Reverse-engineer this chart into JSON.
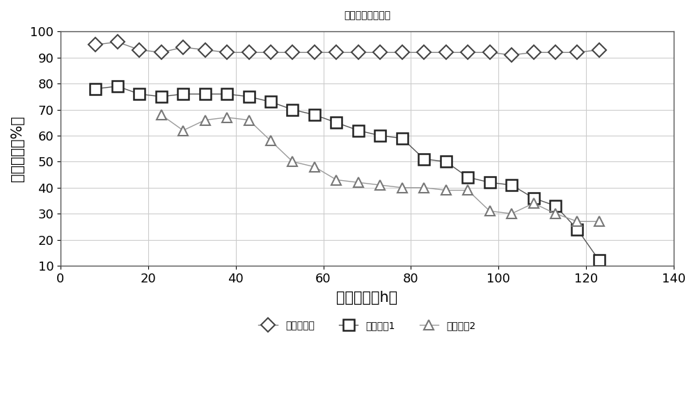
{
  "title": "乙酸丁酯处理效率",
  "xlabel": "运行时间（h）",
  "ylabel": "去除效率（%）",
  "xlim": [
    0,
    140
  ],
  "ylim": [
    10,
    100
  ],
  "xticks": [
    0,
    20,
    40,
    60,
    80,
    100,
    120,
    140
  ],
  "yticks": [
    10,
    20,
    30,
    40,
    50,
    60,
    70,
    80,
    90,
    100
  ],
  "series1_label": "实施例方案",
  "series2_label": "对比方案1",
  "series3_label": "对比方案2",
  "series1_x": [
    8,
    13,
    18,
    23,
    28,
    33,
    38,
    43,
    48,
    53,
    58,
    63,
    68,
    73,
    78,
    83,
    88,
    93,
    98,
    103,
    108,
    113,
    118,
    123
  ],
  "series1_y": [
    95,
    96,
    93,
    92,
    94,
    93,
    92,
    92,
    92,
    92,
    92,
    92,
    92,
    92,
    92,
    92,
    92,
    92,
    92,
    91,
    92,
    92,
    92,
    93
  ],
  "series2_x": [
    8,
    13,
    18,
    23,
    28,
    33,
    38,
    43,
    48,
    53,
    58,
    63,
    68,
    73,
    78,
    83,
    88,
    93,
    98,
    103,
    108,
    113,
    118,
    123
  ],
  "series2_y": [
    78,
    79,
    76,
    75,
    76,
    76,
    76,
    75,
    73,
    70,
    68,
    65,
    62,
    60,
    59,
    51,
    50,
    44,
    42,
    41,
    36,
    33,
    24,
    12
  ],
  "series3_x": [
    23,
    28,
    33,
    38,
    43,
    48,
    53,
    58,
    63,
    68,
    73,
    78,
    83,
    88,
    93,
    98,
    103,
    108,
    113,
    118,
    123
  ],
  "series3_y": [
    68,
    62,
    66,
    67,
    66,
    58,
    50,
    48,
    43,
    42,
    41,
    40,
    40,
    39,
    39,
    31,
    30,
    34,
    30,
    27,
    27
  ],
  "line_color1": "#808080",
  "line_color2": "#555555",
  "line_color3": "#999999",
  "background_color": "#ffffff",
  "grid_color": "#cccccc",
  "title_fontsize": 20,
  "label_fontsize": 15,
  "tick_fontsize": 13,
  "legend_fontsize": 14
}
